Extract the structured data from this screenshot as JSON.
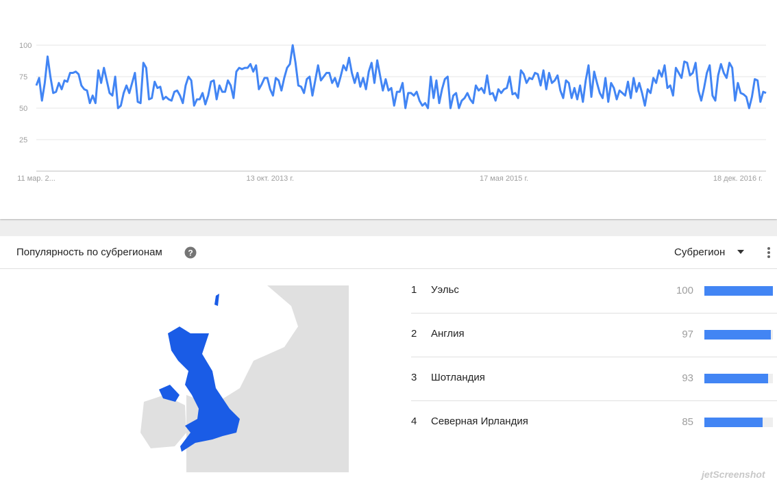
{
  "chart_data": {
    "type": "line",
    "categories": [
      "11 мар. 2...",
      null,
      null,
      null,
      null,
      null,
      null,
      null,
      null,
      null,
      null,
      null,
      null,
      null,
      null,
      null,
      null,
      null,
      null,
      null,
      null,
      null,
      null,
      null,
      null,
      null,
      null,
      null,
      null,
      null,
      null,
      null,
      null,
      null,
      null,
      null,
      null,
      null,
      null,
      null,
      null,
      null,
      null,
      null,
      null,
      null,
      null,
      null,
      null,
      null,
      null,
      null,
      null,
      null,
      null,
      null,
      null,
      null,
      null,
      null,
      null,
      null,
      null,
      null,
      null,
      null,
      null,
      null,
      null,
      null,
      null,
      null,
      null,
      null,
      null,
      null,
      null,
      null,
      null,
      null,
      null,
      null,
      null,
      "13 окт. 2013 г.",
      null,
      null,
      null,
      null,
      null,
      null,
      null,
      null,
      null,
      null,
      null,
      null,
      null,
      null,
      null,
      null,
      null,
      null,
      null,
      null,
      null,
      null,
      null,
      null,
      null,
      null,
      null,
      null,
      null,
      null,
      null,
      null,
      null,
      null,
      null,
      null,
      null,
      null,
      null,
      null,
      null,
      null,
      null,
      null,
      null,
      null,
      null,
      null,
      null,
      null,
      null,
      null,
      null,
      null,
      null,
      null,
      null,
      null,
      null,
      null,
      null,
      null,
      null,
      null,
      null,
      null,
      null,
      null,
      null,
      null,
      null,
      null,
      null,
      null,
      null,
      null,
      null,
      null,
      null,
      null,
      null,
      null,
      "17 мая 2015 г.",
      null,
      null,
      null,
      null,
      null,
      null,
      null,
      null,
      null,
      null,
      null,
      null,
      null,
      null,
      null,
      null,
      null,
      null,
      null,
      null,
      null,
      null,
      null,
      null,
      null,
      null,
      null,
      null,
      null,
      null,
      null,
      null,
      null,
      null,
      null,
      null,
      null,
      null,
      null,
      null,
      null,
      null,
      null,
      null,
      null,
      null,
      null,
      null,
      null,
      null,
      null,
      null,
      null,
      null,
      null,
      null,
      null,
      null,
      null,
      null,
      null,
      null,
      null,
      null,
      null,
      null,
      null,
      null,
      null,
      null,
      null,
      null,
      null,
      null,
      null,
      null,
      null,
      null,
      null,
      null,
      null,
      null,
      "18 дек. 2016 г.",
      null,
      null,
      null,
      null,
      null,
      null,
      null,
      null,
      null,
      null
    ],
    "values": [
      68,
      74,
      56,
      70,
      91,
      75,
      62,
      63,
      70,
      65,
      72,
      71,
      78,
      78,
      79,
      77,
      68,
      65,
      64,
      54,
      60,
      54,
      80,
      70,
      82,
      72,
      62,
      60,
      75,
      50,
      52,
      62,
      68,
      62,
      70,
      78,
      55,
      54,
      86,
      82,
      57,
      58,
      71,
      66,
      67,
      57,
      59,
      57,
      56,
      63,
      64,
      60,
      54,
      68,
      75,
      72,
      52,
      57,
      57,
      62,
      53,
      60,
      71,
      72,
      57,
      68,
      63,
      63,
      72,
      68,
      58,
      79,
      82,
      81,
      82,
      82,
      85,
      79,
      84,
      65,
      69,
      74,
      74,
      65,
      60,
      74,
      72,
      64,
      74,
      82,
      85,
      100,
      86,
      68,
      67,
      62,
      73,
      75,
      60,
      72,
      84,
      72,
      75,
      78,
      78,
      70,
      74,
      67,
      75,
      84,
      80,
      90,
      78,
      70,
      78,
      67,
      74,
      65,
      79,
      86,
      70,
      88,
      76,
      64,
      73,
      64,
      66,
      52,
      63,
      63,
      70,
      50,
      62,
      62,
      60,
      63,
      56,
      52,
      54,
      50,
      75,
      58,
      72,
      54,
      65,
      73,
      75,
      50,
      60,
      62,
      50,
      56,
      58,
      62,
      57,
      54,
      68,
      64,
      66,
      62,
      76,
      61,
      62,
      56,
      65,
      62,
      65,
      66,
      75,
      61,
      62,
      58,
      80,
      77,
      70,
      74,
      73,
      78,
      77,
      68,
      80,
      65,
      78,
      70,
      72,
      76,
      64,
      58,
      72,
      70,
      58,
      66,
      57,
      68,
      55,
      72,
      84,
      59,
      79,
      70,
      62,
      58,
      74,
      55,
      70,
      66,
      57,
      64,
      62,
      60,
      71,
      58,
      74,
      63,
      70,
      62,
      52,
      65,
      62,
      74,
      70,
      80,
      75,
      84,
      66,
      68,
      60,
      82,
      78,
      74,
      87,
      86,
      76,
      78,
      86,
      64,
      56,
      66,
      78,
      84,
      60,
      56,
      76,
      85,
      78,
      74,
      86,
      82,
      56,
      70,
      62,
      61,
      59,
      50,
      59,
      73,
      72,
      55,
      63,
      62
    ],
    "color": "#4285f4",
    "ylim": [
      0,
      100
    ],
    "yticks": [
      25,
      50,
      75,
      100
    ],
    "grid": true
  },
  "regions": {
    "title": "Популярность по субрегионам",
    "dropdown": "Субрегион",
    "bar_color": "#4285f4",
    "rows": [
      {
        "rank": 1,
        "name": "Уэльс",
        "value": 100
      },
      {
        "rank": 2,
        "name": "Англия",
        "value": 97
      },
      {
        "rank": 3,
        "name": "Шотландия",
        "value": 93
      },
      {
        "rank": 4,
        "name": "Северная Ирландия",
        "value": 85
      }
    ]
  },
  "watermark": "jetScreenshot"
}
